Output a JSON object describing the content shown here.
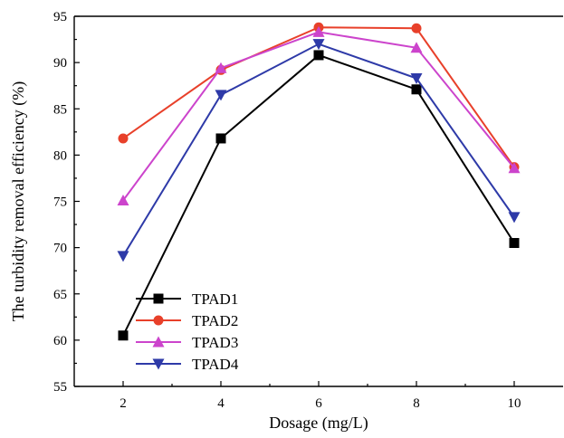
{
  "chart_data": {
    "type": "line",
    "title": "",
    "xlabel": "Dosage (mg/L)",
    "ylabel": "The turbidity removal efficiency (%)",
    "x": [
      2,
      4,
      6,
      8,
      10
    ],
    "xlim": [
      1,
      11
    ],
    "ylim": [
      55,
      95
    ],
    "xticks": [
      2,
      4,
      6,
      8,
      10
    ],
    "yticks": [
      55,
      60,
      65,
      70,
      75,
      80,
      85,
      90,
      95
    ],
    "grid": false,
    "legend_position": "bottom-left",
    "series": [
      {
        "name": "TPAD1",
        "values": [
          60.5,
          81.8,
          90.8,
          87.1,
          70.5
        ],
        "color": "#000000",
        "marker": "square"
      },
      {
        "name": "TPAD2",
        "values": [
          81.8,
          89.2,
          93.8,
          93.7,
          78.7
        ],
        "color": "#e8402a",
        "marker": "circle"
      },
      {
        "name": "TPAD3",
        "values": [
          75.1,
          89.4,
          93.3,
          91.6,
          78.6
        ],
        "color": "#cc44cc",
        "marker": "triangle-up"
      },
      {
        "name": "TPAD4",
        "values": [
          69.1,
          86.5,
          92.0,
          88.3,
          73.3
        ],
        "color": "#2e3aa8",
        "marker": "triangle-down"
      }
    ]
  }
}
